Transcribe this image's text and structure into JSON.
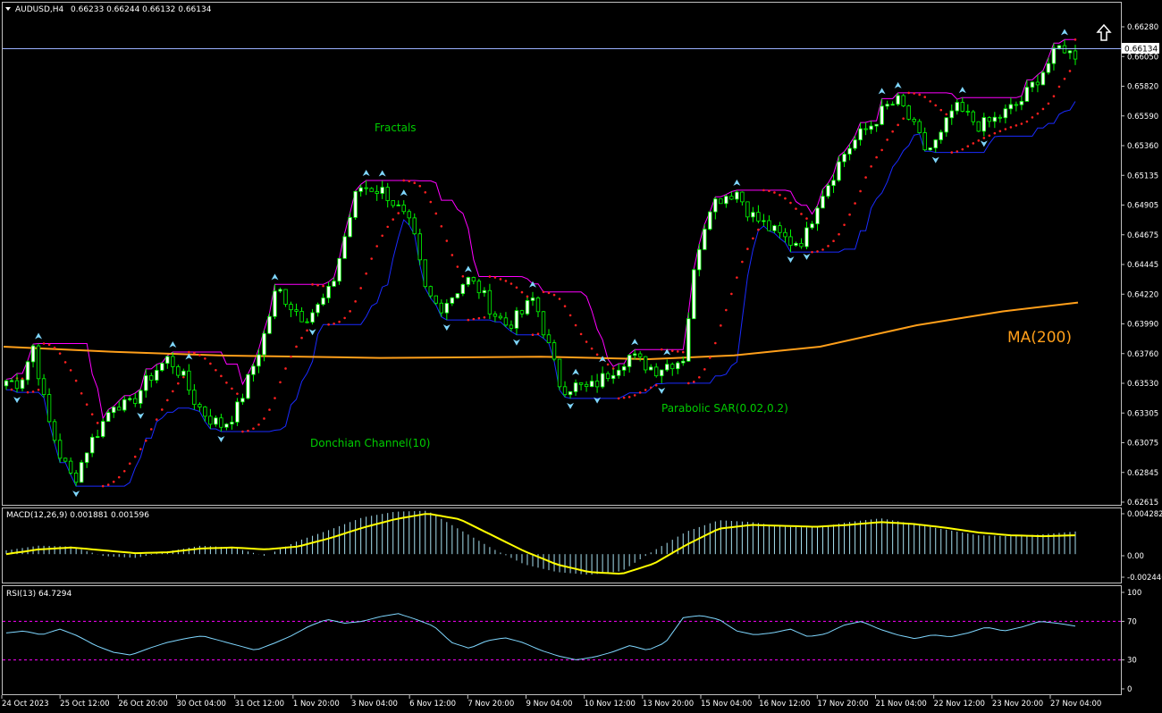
{
  "header": {
    "symbol": "AUDUSD,H4",
    "ohlc": "0.66233 0.66244 0.66132 0.66134",
    "arrow_icon": "up-arrow-icon"
  },
  "annotations": {
    "fractals": "Fractals",
    "donchian": "Donchian Channel(10)",
    "sar": "Parabolic SAR(0.02,0.2)",
    "ma": "MA(200)"
  },
  "current_price_label": "0.66134",
  "macd_panel": {
    "label": "MACD(12,26,9) 0.001881 0.001596"
  },
  "rsi_panel": {
    "label": "RSI(13) 64.7294"
  },
  "colors": {
    "background": "#000000",
    "frame": "#c0c0c0",
    "bull_candle": "#ffffff",
    "bear_candle": "#000000",
    "candle_wick": "#00ff00",
    "ma": "#ff9f1a",
    "donchian_upper": "#ff00ff",
    "donchian_lower": "#1a2bff",
    "sar": "#ff2020",
    "fractal": "#7fd7ff",
    "annotation": "#00cc00",
    "macd_hist": "#a7e1f0",
    "macd_signal": "#ffff00",
    "rsi_line": "#7fd7ff",
    "rsi_levels": "#ff00ff",
    "price_line": "#9ab0ff"
  },
  "chart_data": [
    {
      "type": "candlestick",
      "name": "price",
      "ylim": [
        0.62615,
        0.6639
      ],
      "y_ticks": [
        "0.66280",
        "0.66050",
        "0.65820",
        "0.65590",
        "0.65360",
        "0.65135",
        "0.64905",
        "0.64675",
        "0.64445",
        "0.64220",
        "0.63990",
        "0.63760",
        "0.63530",
        "0.63305",
        "0.63075",
        "0.62845",
        "0.62615"
      ],
      "x_ticks": [
        "24 Oct 2023",
        "25 Oct 12:00",
        "26 Oct 20:00",
        "30 Oct 04:00",
        "31 Oct 12:00",
        "1 Nov 20:00",
        "3 Nov 04:00",
        "6 Nov 12:00",
        "7 Nov 20:00",
        "9 Nov 04:00",
        "10 Nov 12:00",
        "13 Nov 20:00",
        "15 Nov 04:00",
        "16 Nov 12:00",
        "17 Nov 20:00",
        "21 Nov 04:00",
        "22 Nov 12:00",
        "23 Nov 20:00",
        "27 Nov 04:00"
      ],
      "close_path": [
        0.6358,
        0.6356,
        0.6386,
        0.633,
        0.6298,
        0.6278,
        0.6305,
        0.6322,
        0.6342,
        0.6336,
        0.6352,
        0.6366,
        0.6376,
        0.6362,
        0.634,
        0.6328,
        0.6322,
        0.6334,
        0.6362,
        0.6392,
        0.6432,
        0.6418,
        0.6408,
        0.6416,
        0.643,
        0.6472,
        0.6512,
        0.6511,
        0.6508,
        0.6494,
        0.6478,
        0.6428,
        0.6416,
        0.6426,
        0.6439,
        0.643,
        0.6412,
        0.6402,
        0.641,
        0.6424,
        0.6388,
        0.6352,
        0.6354,
        0.6351,
        0.6359,
        0.6369,
        0.6378,
        0.6372,
        0.6367,
        0.6372,
        0.6375,
        0.6458,
        0.6498,
        0.6505,
        0.6508,
        0.649,
        0.6482,
        0.6474,
        0.6468,
        0.647,
        0.6502,
        0.652,
        0.654,
        0.6552,
        0.6562,
        0.6575,
        0.658,
        0.656,
        0.654,
        0.655,
        0.6575,
        0.6568,
        0.656,
        0.6565,
        0.6572,
        0.658,
        0.6595,
        0.661,
        0.6625,
        0.6613
      ],
      "last_price": 0.66134,
      "ma200": [
        [
          0,
          0.6385
        ],
        [
          0.1,
          0.6381
        ],
        [
          0.2,
          0.6378
        ],
        [
          0.35,
          0.6376
        ],
        [
          0.5,
          0.6377
        ],
        [
          0.6,
          0.6375
        ],
        [
          0.68,
          0.6378
        ],
        [
          0.76,
          0.6385
        ],
        [
          0.85,
          0.6402
        ],
        [
          0.93,
          0.6413
        ],
        [
          1,
          0.642
        ]
      ],
      "donchian_period": 10,
      "sar_params": [
        0.02,
        0.2
      ]
    },
    {
      "type": "bar+line",
      "name": "MACD(12,26,9)",
      "ylim": [
        -0.002446,
        0.004282
      ],
      "y_ticks": [
        "0.004282",
        "0.00",
        "-0.002446"
      ],
      "macd_hist_path": [
        0.0004,
        0.0009,
        0.0008,
        -0.0002,
        -0.0004,
        0.0003,
        0.0009,
        0.0007,
        -0.0002,
        0.0014,
        0.0026,
        0.0039,
        0.0045,
        0.0046,
        0.0026,
        0.0006,
        -0.0011,
        -0.0019,
        -0.0022,
        -0.0018,
        0.0004,
        0.0024,
        0.0036,
        0.0034,
        0.0029,
        0.0028,
        0.0034,
        0.0038,
        0.0032,
        0.0026,
        0.002,
        0.0019,
        0.0021,
        0.0024
      ],
      "signal_path": [
        0.0,
        0.0005,
        0.0007,
        0.0004,
        0.0001,
        0.0002,
        0.0006,
        0.0007,
        0.0005,
        0.0008,
        0.0017,
        0.0028,
        0.0037,
        0.0043,
        0.0037,
        0.002,
        0.0003,
        -0.0011,
        -0.0019,
        -0.0021,
        -0.001,
        0.001,
        0.0027,
        0.0031,
        0.003,
        0.0029,
        0.0031,
        0.0034,
        0.0032,
        0.0028,
        0.0023,
        0.002,
        0.0019,
        0.002
      ]
    },
    {
      "type": "line",
      "name": "RSI(13)",
      "ylim": [
        0,
        100
      ],
      "y_ticks": [
        "100",
        "70",
        "30",
        "0"
      ],
      "levels": [
        70,
        30
      ],
      "values": [
        58,
        60,
        56,
        62,
        55,
        45,
        38,
        35,
        42,
        48,
        52,
        55,
        50,
        45,
        40,
        47,
        55,
        65,
        72,
        68,
        70,
        75,
        78,
        72,
        65,
        48,
        42,
        50,
        53,
        48,
        40,
        34,
        30,
        33,
        38,
        45,
        40,
        48,
        74,
        76,
        72,
        60,
        56,
        58,
        62,
        54,
        57,
        66,
        70,
        62,
        56,
        52,
        56,
        54,
        58,
        64,
        60,
        64,
        70,
        68,
        65
      ]
    }
  ]
}
